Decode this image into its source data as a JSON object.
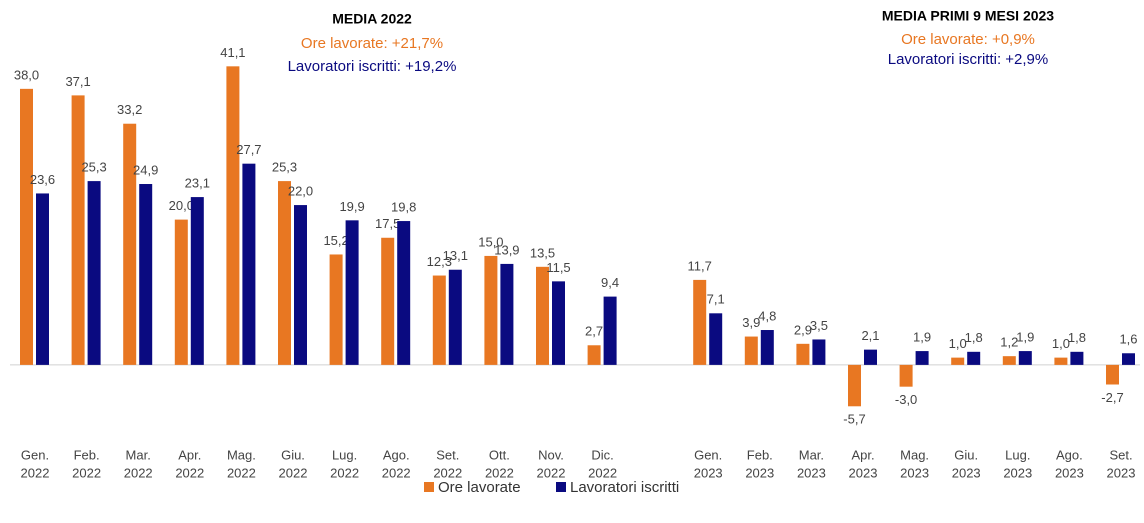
{
  "chart_data": {
    "type": "bar",
    "categories": [
      [
        "Gen.",
        "2022"
      ],
      [
        "Feb.",
        "2022"
      ],
      [
        "Mar.",
        "2022"
      ],
      [
        "Apr.",
        "2022"
      ],
      [
        "Mag.",
        "2022"
      ],
      [
        "Giu.",
        "2022"
      ],
      [
        "Lug.",
        "2022"
      ],
      [
        "Ago.",
        "2022"
      ],
      [
        "Set.",
        "2022"
      ],
      [
        "Ott.",
        "2022"
      ],
      [
        "Nov.",
        "2022"
      ],
      [
        "Dic.",
        "2022"
      ],
      [
        "Gen.",
        "2023"
      ],
      [
        "Feb.",
        "2023"
      ],
      [
        "Mar.",
        "2023"
      ],
      [
        "Apr.",
        "2023"
      ],
      [
        "Mag.",
        "2023"
      ],
      [
        "Giu.",
        "2023"
      ],
      [
        "Lug.",
        "2023"
      ],
      [
        "Ago.",
        "2023"
      ],
      [
        "Set.",
        "2023"
      ]
    ],
    "series": [
      {
        "name": "Ore lavorate",
        "color": "#e87722",
        "values": [
          38.0,
          37.1,
          33.2,
          20.0,
          41.1,
          25.3,
          15.2,
          17.5,
          12.3,
          15.0,
          13.5,
          2.7,
          11.7,
          3.9,
          2.9,
          -5.7,
          -3.0,
          1.0,
          1.2,
          1.0,
          -2.7
        ],
        "value_labels": [
          "38,0",
          "37,1",
          "33,2",
          "20,0",
          "41,1",
          "25,3",
          "15,2",
          "17,5",
          "12,3",
          "15,0",
          "13,5",
          "2,7",
          "11,7",
          "3,9",
          "2,9",
          "-5,7",
          "-3,0",
          "1,0",
          "1,2",
          "1,0",
          "-2,7"
        ]
      },
      {
        "name": "Lavoratori iscritti",
        "color": "#0a0a80",
        "values": [
          23.6,
          25.3,
          24.9,
          23.1,
          27.7,
          22.0,
          19.9,
          19.8,
          13.1,
          13.9,
          11.5,
          9.4,
          7.1,
          4.8,
          3.5,
          2.1,
          1.9,
          1.8,
          1.9,
          1.8,
          1.6
        ],
        "value_labels": [
          "23,6",
          "25,3",
          "24,9",
          "23,1",
          "27,7",
          "22,0",
          "19,9",
          "19,8",
          "13,1",
          "13,9",
          "11,5",
          "9,4",
          "7,1",
          "4,8",
          "3,5",
          "2,1",
          "1,9",
          "1,8",
          "1,9",
          "1,8",
          "1,6"
        ]
      }
    ],
    "annotations": [
      {
        "title": "MEDIA 2022",
        "lines": [
          "Ore lavorate: +21,7%",
          "Lavoratori iscritti: +19,2%"
        ]
      },
      {
        "title": "MEDIA PRIMI 9 MESI 2023",
        "lines": [
          "Ore lavorate: +0,9%",
          "Lavoratori iscritti: +2,9%"
        ]
      }
    ],
    "ylim": [
      -8,
      45
    ],
    "legend": "bottom"
  }
}
